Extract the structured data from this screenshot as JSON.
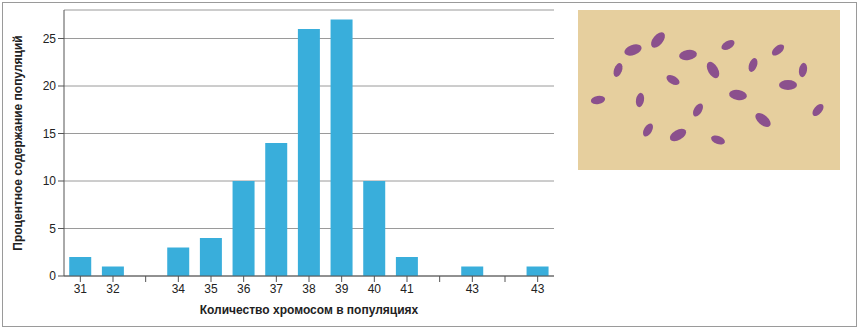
{
  "chart_data": {
    "type": "bar",
    "x_label": "Количество хромосом в популяциях",
    "y_label": "Процентное содержание популяций",
    "categories": [
      "31",
      "32",
      null,
      "34",
      "35",
      "36",
      "37",
      "38",
      "39",
      "40",
      "41",
      null,
      "43",
      null,
      "43"
    ],
    "values": [
      2,
      1,
      null,
      3,
      4,
      10,
      14,
      26,
      27,
      10,
      2,
      null,
      1,
      null,
      1
    ],
    "color": "#39aedb",
    "ylim": [
      0,
      28
    ],
    "yticks": [
      0,
      5,
      10,
      15,
      20,
      25
    ],
    "grid": true
  }
}
